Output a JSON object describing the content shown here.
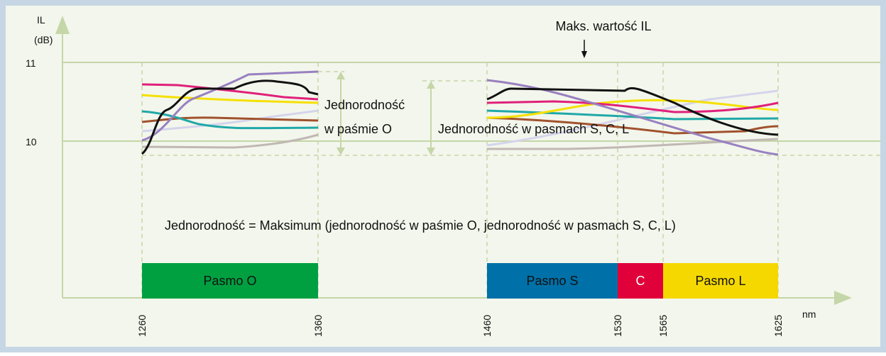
{
  "axis": {
    "y_label": "IL",
    "y_unit": "(dB)",
    "y_ticks": [
      "11",
      "10"
    ],
    "x_ticks": [
      "1260",
      "1360",
      "1460",
      "1530",
      "1565",
      "1625"
    ],
    "x_unit": "nm"
  },
  "annotations": {
    "max_label": "Maks. wartość IL",
    "o_uniformity": [
      "Jednorodność",
      "w paśmie O"
    ],
    "scl_uniformity": "Jednorodność w pasmach S, C, L",
    "formula": "Jednorodność = Maksimum (jednorodność w paśmie O, jednorodność w pasmach S, C, L)"
  },
  "bands": [
    "Pasmo O",
    "Pasmo S",
    "C",
    "Pasmo L"
  ]
}
